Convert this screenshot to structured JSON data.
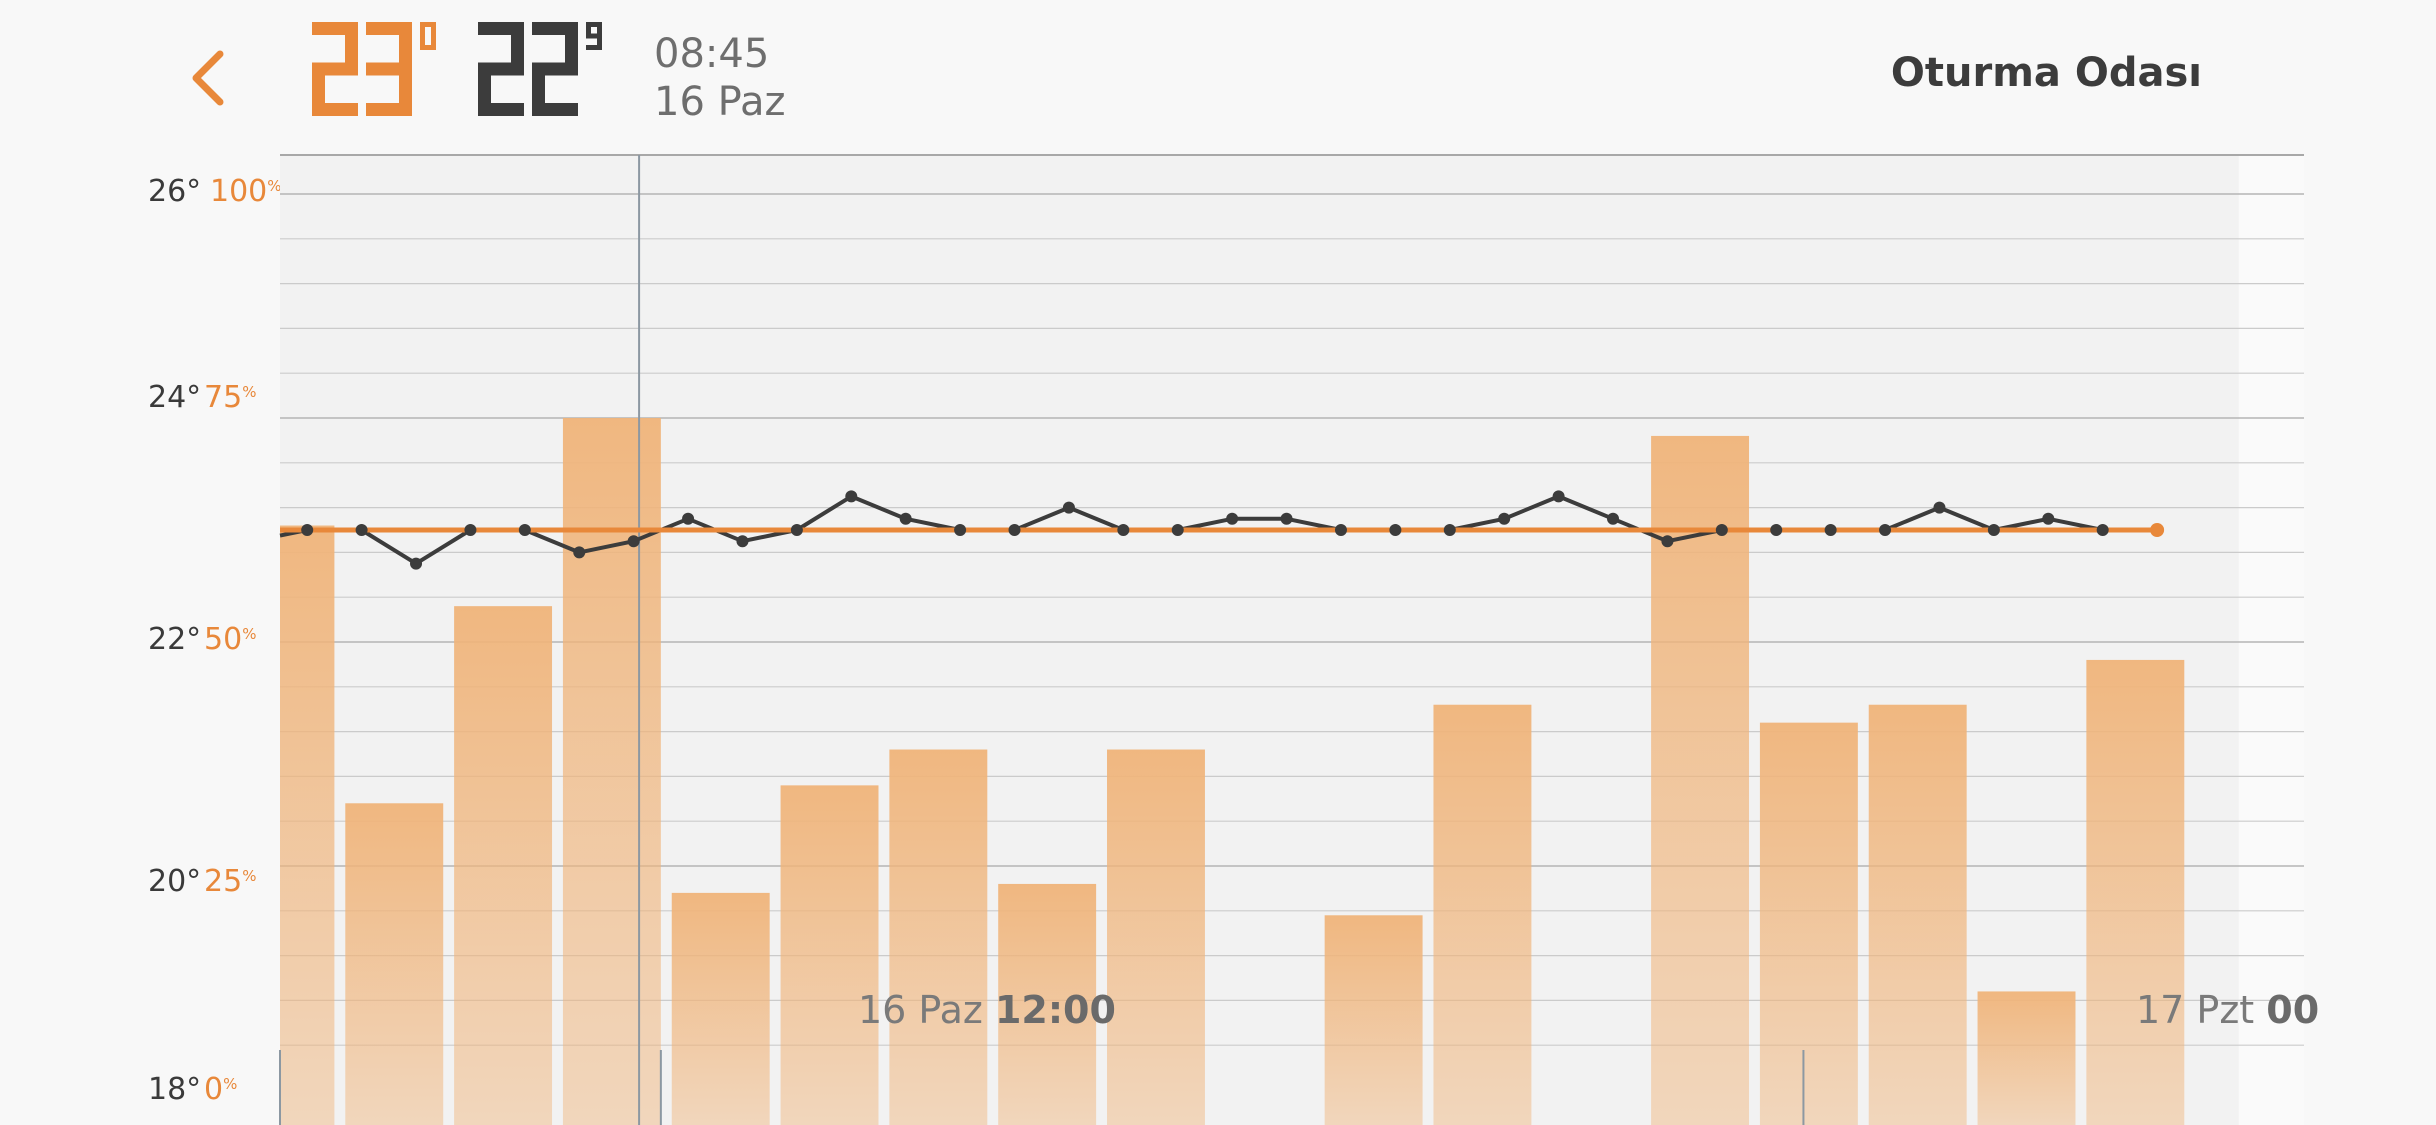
{
  "header": {
    "back_icon": "chevron-left-icon",
    "setpoint_temp": "23",
    "setpoint_unit": "o",
    "current_temp": "22",
    "current_decimal": "9",
    "time": "08:45",
    "date": "16 Paz",
    "room_name": "Oturma Odası"
  },
  "colors": {
    "accent": "#e8883a",
    "dark": "#3c3c3c",
    "bar": "#f0b47a",
    "background": "#f8f8f8",
    "plot_background": "#f2f2f2"
  },
  "axes": {
    "temp_labels": [
      "26°",
      "24°",
      "22°",
      "20°",
      "18°"
    ],
    "percent_labels": [
      "100",
      "75",
      "50",
      "25",
      "0"
    ],
    "percent_sign": "%",
    "x_labels": [
      {
        "day": "16 Paz",
        "time": "12:00"
      },
      {
        "day": "17 Pzt",
        "time": "00"
      }
    ]
  },
  "chart_data": {
    "type": "line",
    "temp_axis": {
      "ylim": [
        18,
        26
      ],
      "ticks": [
        18,
        20,
        22,
        24,
        26
      ]
    },
    "humidity_axis": {
      "ylim": [
        0,
        100
      ],
      "ticks": [
        0,
        25,
        50,
        75,
        100
      ]
    },
    "x_hours": [
      5.0,
      8.5,
      19.0
    ],
    "bars_humidity": [
      {
        "start": 5.0,
        "end": 5.5,
        "value": 63
      },
      {
        "start": 5.6,
        "end": 6.5,
        "value": 32
      },
      {
        "start": 6.6,
        "end": 7.5,
        "value": 54
      },
      {
        "start": 7.6,
        "end": 8.5,
        "value": 75
      },
      {
        "start": 8.6,
        "end": 9.5,
        "value": 22
      },
      {
        "start": 9.6,
        "end": 10.5,
        "value": 34
      },
      {
        "start": 10.6,
        "end": 11.5,
        "value": 38
      },
      {
        "start": 11.6,
        "end": 12.5,
        "value": 23
      },
      {
        "start": 12.6,
        "end": 13.5,
        "value": 38
      },
      {
        "start": 14.6,
        "end": 15.5,
        "value": 19.5
      },
      {
        "start": 15.6,
        "end": 16.5,
        "value": 43
      },
      {
        "start": 17.6,
        "end": 18.5,
        "value": 73
      },
      {
        "start": 18.6,
        "end": 19.5,
        "value": 41
      },
      {
        "start": 19.6,
        "end": 20.5,
        "value": 43
      },
      {
        "start": 20.6,
        "end": 21.5,
        "value": 11
      },
      {
        "start": 21.6,
        "end": 22.5,
        "value": 48
      }
    ],
    "series": [
      {
        "name": "",
        "color": "#3c3c3c",
        "x": [
          5.0,
          5.25,
          5.75,
          6.25,
          6.75,
          7.25,
          7.75,
          8.25,
          8.75,
          9.25,
          9.75,
          10.25,
          10.75,
          11.25,
          11.75,
          12.25,
          12.75,
          13.25,
          13.75,
          14.25,
          14.75,
          15.25,
          15.75,
          16.25,
          16.75,
          17.25,
          17.75,
          18.25,
          18.75,
          19.25,
          19.75,
          20.25,
          20.75,
          21.25,
          21.75
        ],
        "y": [
          22.95,
          23.0,
          23.0,
          22.7,
          23.0,
          23.0,
          22.8,
          22.9,
          23.1,
          22.9,
          23.0,
          23.3,
          23.1,
          23.0,
          23.0,
          23.2,
          23.0,
          23.0,
          23.1,
          23.1,
          23.0,
          23.0,
          23.0,
          23.1,
          23.3,
          23.1,
          22.9,
          23.0,
          23.0,
          23.0,
          23.0,
          23.2,
          23.0,
          23.1,
          23.0
        ]
      },
      {
        "name": "",
        "color": "#e8883a",
        "x": [
          5.0,
          22.25
        ],
        "y": [
          23.0,
          23.0
        ]
      }
    ],
    "current_time_marker": 8.3,
    "future_region_start": 23.0,
    "grid": true
  }
}
